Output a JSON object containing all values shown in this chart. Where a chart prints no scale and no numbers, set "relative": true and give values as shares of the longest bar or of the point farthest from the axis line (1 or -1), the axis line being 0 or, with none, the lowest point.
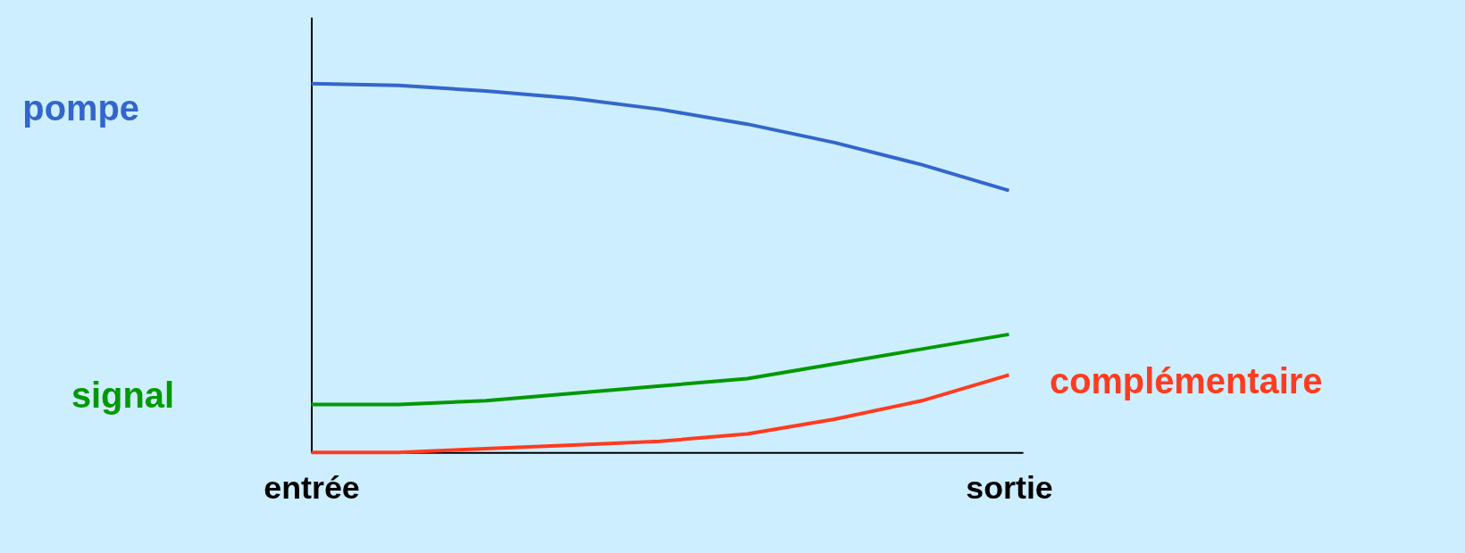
{
  "chart_data": {
    "type": "line",
    "relative": true,
    "categories": [
      "entrée",
      null,
      null,
      null,
      null,
      null,
      null,
      null,
      "sortie"
    ],
    "grid": false,
    "marker": "none",
    "line_style": "solid",
    "series": [
      {
        "name": "pompe",
        "color": "#3366cc",
        "values": [
          1,
          0.995,
          0.98,
          0.96,
          0.93,
          0.89,
          0.84,
          0.78,
          0.71
        ]
      },
      {
        "name": "signal",
        "color": "#009900",
        "values": [
          0.13,
          0.13,
          0.14,
          0.16,
          0.18,
          0.2,
          0.24,
          0.28,
          0.32
        ]
      },
      {
        "name": "complémentaire",
        "color": "#ff3b1f",
        "values": [
          0,
          0,
          0.01,
          0.02,
          0.03,
          0.05,
          0.09,
          0.14,
          0.21
        ]
      }
    ]
  }
}
